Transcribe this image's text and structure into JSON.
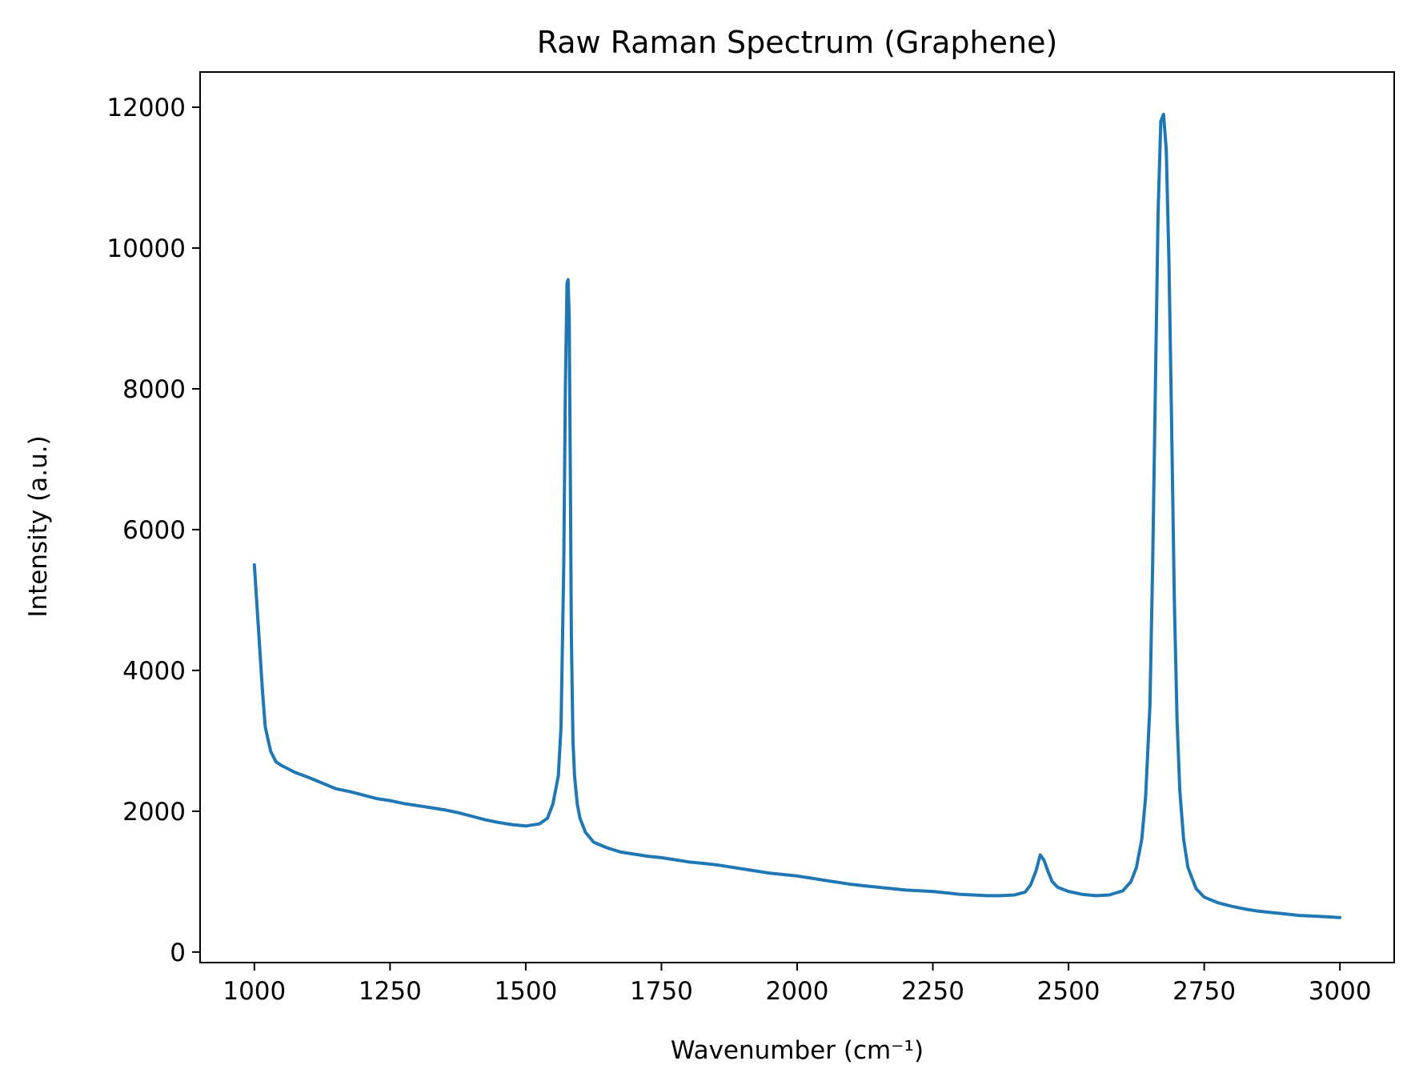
{
  "chart_data": {
    "type": "line",
    "title": "Raw Raman Spectrum (Graphene)",
    "xlabel": "Wavenumber (cm⁻¹)",
    "ylabel": "Intensity (a.u.)",
    "xlim": [
      900,
      3100
    ],
    "ylim": [
      -150,
      12500
    ],
    "xticks": [
      1000,
      1250,
      1500,
      1750,
      2000,
      2250,
      2500,
      2750,
      3000
    ],
    "xtick_labels": [
      "1000",
      "1250",
      "1500",
      "1750",
      "2000",
      "2250",
      "2500",
      "2750",
      "3000"
    ],
    "yticks": [
      0,
      2000,
      4000,
      6000,
      8000,
      10000,
      12000
    ],
    "ytick_labels": [
      "0",
      "2000",
      "4000",
      "6000",
      "8000",
      "10000",
      "12000"
    ],
    "grid": false,
    "series": [
      {
        "color": "#1f77b4",
        "x": [
          1000,
          1005,
          1010,
          1015,
          1020,
          1030,
          1040,
          1050,
          1075,
          1100,
          1125,
          1150,
          1175,
          1200,
          1225,
          1250,
          1275,
          1300,
          1325,
          1350,
          1375,
          1400,
          1425,
          1450,
          1475,
          1500,
          1525,
          1540,
          1550,
          1560,
          1565,
          1570,
          1573,
          1576,
          1578,
          1580,
          1582,
          1584,
          1587,
          1590,
          1595,
          1600,
          1610,
          1625,
          1650,
          1675,
          1700,
          1725,
          1750,
          1775,
          1800,
          1825,
          1850,
          1875,
          1900,
          1925,
          1950,
          1975,
          2000,
          2025,
          2050,
          2075,
          2100,
          2125,
          2150,
          2175,
          2200,
          2225,
          2250,
          2275,
          2300,
          2325,
          2350,
          2375,
          2400,
          2420,
          2430,
          2440,
          2448,
          2455,
          2462,
          2470,
          2480,
          2500,
          2525,
          2550,
          2575,
          2600,
          2615,
          2625,
          2635,
          2642,
          2650,
          2655,
          2660,
          2665,
          2670,
          2675,
          2680,
          2685,
          2690,
          2695,
          2700,
          2705,
          2712,
          2720,
          2735,
          2750,
          2775,
          2800,
          2825,
          2850,
          2875,
          2900,
          2925,
          2950,
          2975,
          3000
        ],
        "y": [
          5500,
          4900,
          4300,
          3700,
          3200,
          2850,
          2700,
          2650,
          2550,
          2480,
          2400,
          2320,
          2280,
          2230,
          2180,
          2150,
          2110,
          2080,
          2050,
          2020,
          1980,
          1930,
          1880,
          1840,
          1810,
          1790,
          1820,
          1900,
          2100,
          2500,
          3200,
          5500,
          8000,
          9500,
          9550,
          9000,
          7000,
          4500,
          3000,
          2500,
          2100,
          1900,
          1700,
          1560,
          1480,
          1420,
          1390,
          1360,
          1340,
          1310,
          1280,
          1260,
          1240,
          1210,
          1180,
          1150,
          1120,
          1100,
          1080,
          1050,
          1020,
          990,
          960,
          940,
          920,
          900,
          880,
          870,
          860,
          840,
          820,
          810,
          800,
          800,
          810,
          850,
          950,
          1150,
          1380,
          1300,
          1150,
          1000,
          920,
          860,
          820,
          800,
          810,
          870,
          1000,
          1200,
          1600,
          2200,
          3500,
          5500,
          8000,
          10500,
          11800,
          11900,
          11400,
          9800,
          7500,
          5000,
          3300,
          2300,
          1600,
          1200,
          900,
          780,
          700,
          650,
          610,
          580,
          560,
          540,
          520,
          510,
          500,
          490
        ]
      }
    ]
  }
}
